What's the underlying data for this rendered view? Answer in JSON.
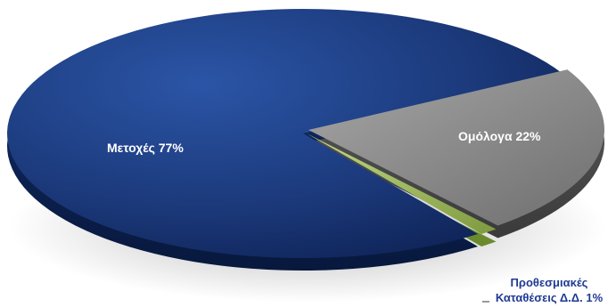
{
  "chart_data": {
    "type": "pie",
    "style": "3d-exploded",
    "title": "",
    "slices": [
      {
        "label": "Μετοχές",
        "value": 77,
        "display": "Μετοχές 77%",
        "color": "#1c3a7c"
      },
      {
        "label": "Ομόλογα",
        "value": 22,
        "display": "Ομόλογα 22%",
        "color": "#8c8c8c"
      },
      {
        "label": "Προθεσμιακές Καταθέσεις Δ.Δ.",
        "value": 1,
        "display_lines": [
          "Προθεσμιακές",
          "Καταθέσεις Δ.Δ. 1%"
        ],
        "color": "#9bbb59"
      }
    ],
    "legend": "none",
    "label_colors": {
      "inside": "#ffffff",
      "outside": "#1f3a93"
    }
  }
}
